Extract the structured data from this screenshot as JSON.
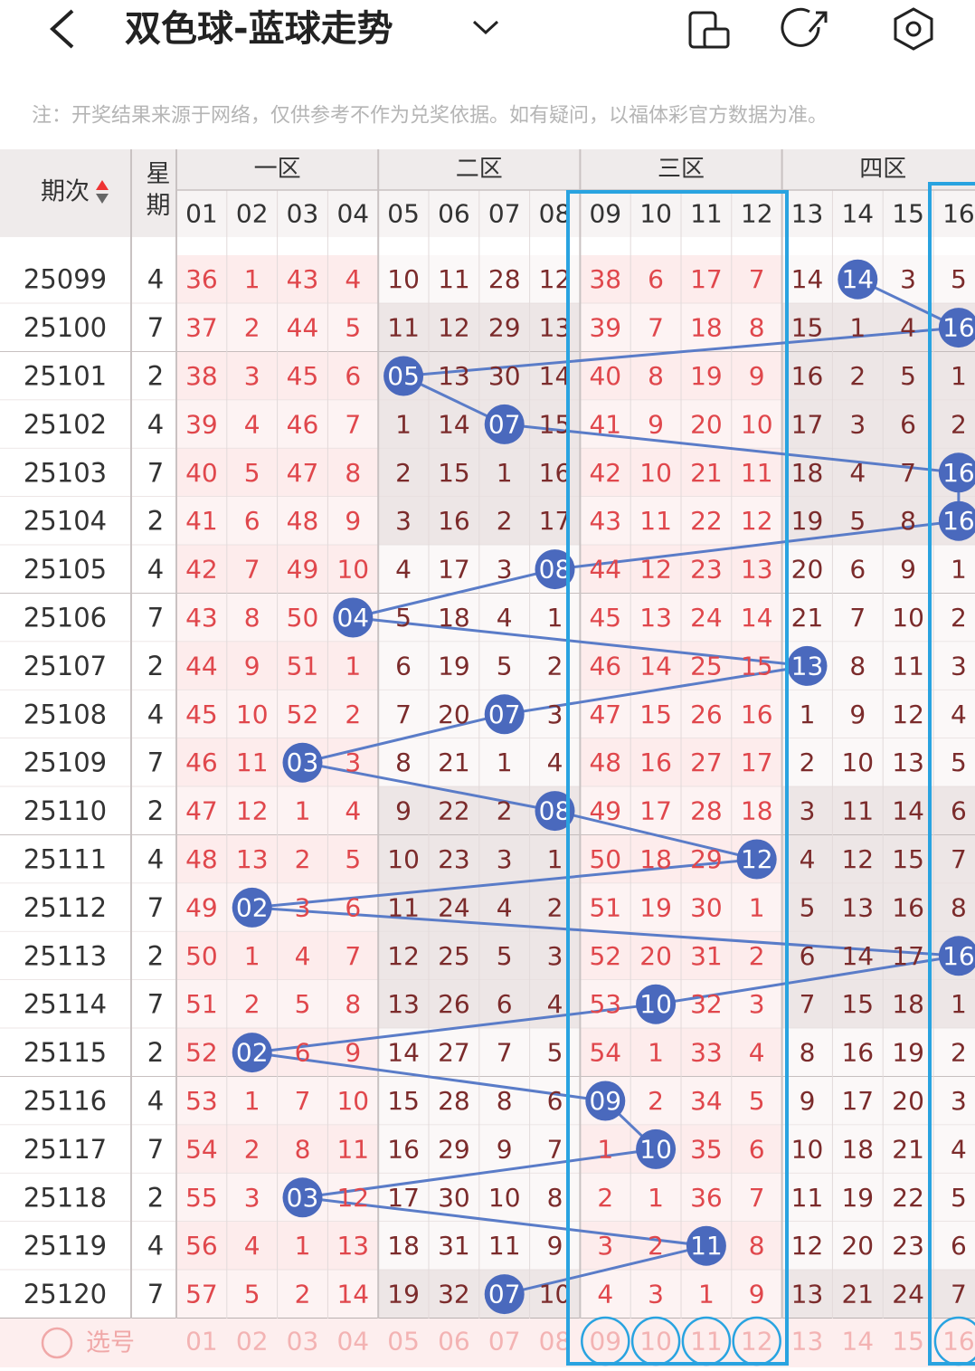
{
  "header": {
    "title": "双色球-蓝球走势"
  },
  "note": "注：开奖结果来源于网络，仅供参考不作为兑奖依据。如有疑问，以福体彩官方数据为准。",
  "table": {
    "issue_header": "期次",
    "weekday_header": "星期",
    "zones": [
      "一区",
      "二区",
      "三区",
      "四区"
    ],
    "columns": [
      "01",
      "02",
      "03",
      "04",
      "05",
      "06",
      "07",
      "08",
      "09",
      "10",
      "11",
      "12",
      "13",
      "14",
      "15",
      "16"
    ],
    "rows": [
      {
        "issue": "25099",
        "weekday": 4,
        "cells": [
          36,
          1,
          43,
          4,
          10,
          11,
          28,
          12,
          38,
          6,
          17,
          7,
          14,
          {
            "ball": "14"
          },
          3,
          5
        ]
      },
      {
        "issue": "25100",
        "weekday": 7,
        "cells": [
          37,
          2,
          44,
          5,
          11,
          12,
          29,
          13,
          39,
          7,
          18,
          8,
          15,
          1,
          4,
          {
            "ball": "16"
          }
        ]
      },
      {
        "issue": "25101",
        "weekday": 2,
        "cells": [
          38,
          3,
          45,
          6,
          {
            "ball": "05"
          },
          13,
          30,
          14,
          40,
          8,
          19,
          9,
          16,
          2,
          5,
          1
        ]
      },
      {
        "issue": "25102",
        "weekday": 4,
        "cells": [
          39,
          4,
          46,
          7,
          1,
          14,
          {
            "ball": "07"
          },
          15,
          41,
          9,
          20,
          10,
          17,
          3,
          6,
          2
        ]
      },
      {
        "issue": "25103",
        "weekday": 7,
        "cells": [
          40,
          5,
          47,
          8,
          2,
          15,
          1,
          16,
          42,
          10,
          21,
          11,
          18,
          4,
          7,
          {
            "ball": "16"
          }
        ]
      },
      {
        "issue": "25104",
        "weekday": 2,
        "cells": [
          41,
          6,
          48,
          9,
          3,
          16,
          2,
          17,
          43,
          11,
          22,
          12,
          19,
          5,
          8,
          {
            "ball": "16"
          }
        ]
      },
      {
        "issue": "25105",
        "weekday": 4,
        "cells": [
          42,
          7,
          49,
          10,
          4,
          17,
          3,
          {
            "ball": "08"
          },
          44,
          12,
          23,
          13,
          20,
          6,
          9,
          1
        ]
      },
      {
        "issue": "25106",
        "weekday": 7,
        "cells": [
          43,
          8,
          50,
          {
            "ball": "04"
          },
          5,
          18,
          4,
          1,
          45,
          13,
          24,
          14,
          21,
          7,
          10,
          2
        ]
      },
      {
        "issue": "25107",
        "weekday": 2,
        "cells": [
          44,
          9,
          51,
          1,
          6,
          19,
          5,
          2,
          46,
          14,
          25,
          15,
          {
            "ball": "13"
          },
          8,
          11,
          3
        ]
      },
      {
        "issue": "25108",
        "weekday": 4,
        "cells": [
          45,
          10,
          52,
          2,
          7,
          20,
          {
            "ball": "07"
          },
          3,
          47,
          15,
          26,
          16,
          1,
          9,
          12,
          4
        ]
      },
      {
        "issue": "25109",
        "weekday": 7,
        "cells": [
          46,
          11,
          {
            "ball": "03"
          },
          3,
          8,
          21,
          1,
          4,
          48,
          16,
          27,
          17,
          2,
          10,
          13,
          5
        ]
      },
      {
        "issue": "25110",
        "weekday": 2,
        "cells": [
          47,
          12,
          1,
          4,
          9,
          22,
          2,
          {
            "ball": "08"
          },
          49,
          17,
          28,
          18,
          3,
          11,
          14,
          6
        ]
      },
      {
        "issue": "25111",
        "weekday": 4,
        "cells": [
          48,
          13,
          2,
          5,
          10,
          23,
          3,
          1,
          50,
          18,
          29,
          {
            "ball": "12"
          },
          4,
          12,
          15,
          7
        ]
      },
      {
        "issue": "25112",
        "weekday": 7,
        "cells": [
          49,
          {
            "ball": "02"
          },
          3,
          6,
          11,
          24,
          4,
          2,
          51,
          19,
          30,
          1,
          5,
          13,
          16,
          8
        ]
      },
      {
        "issue": "25113",
        "weekday": 2,
        "cells": [
          50,
          1,
          4,
          7,
          12,
          25,
          5,
          3,
          52,
          20,
          31,
          2,
          6,
          14,
          17,
          {
            "ball": "16"
          }
        ]
      },
      {
        "issue": "25114",
        "weekday": 7,
        "cells": [
          51,
          2,
          5,
          8,
          13,
          26,
          6,
          4,
          53,
          {
            "ball": "10"
          },
          32,
          3,
          7,
          15,
          18,
          1
        ]
      },
      {
        "issue": "25115",
        "weekday": 2,
        "cells": [
          52,
          {
            "ball": "02"
          },
          6,
          9,
          14,
          27,
          7,
          5,
          54,
          1,
          33,
          4,
          8,
          16,
          19,
          2
        ]
      },
      {
        "issue": "25116",
        "weekday": 4,
        "cells": [
          53,
          1,
          7,
          10,
          15,
          28,
          8,
          6,
          {
            "ball": "09"
          },
          2,
          34,
          5,
          9,
          17,
          20,
          3
        ]
      },
      {
        "issue": "25117",
        "weekday": 7,
        "cells": [
          54,
          2,
          8,
          11,
          16,
          29,
          9,
          7,
          1,
          {
            "ball": "10"
          },
          35,
          6,
          10,
          18,
          21,
          4
        ]
      },
      {
        "issue": "25118",
        "weekday": 2,
        "cells": [
          55,
          3,
          {
            "ball": "03"
          },
          12,
          17,
          30,
          10,
          8,
          2,
          1,
          36,
          7,
          11,
          19,
          22,
          5
        ]
      },
      {
        "issue": "25119",
        "weekday": 4,
        "cells": [
          56,
          4,
          1,
          13,
          18,
          31,
          11,
          9,
          3,
          2,
          {
            "ball": "11"
          },
          8,
          12,
          20,
          23,
          6
        ]
      },
      {
        "issue": "25120",
        "weekday": 7,
        "cells": [
          57,
          5,
          2,
          14,
          19,
          32,
          {
            "ball": "07"
          },
          10,
          4,
          3,
          1,
          9,
          13,
          21,
          24,
          7
        ]
      }
    ]
  },
  "footer": {
    "select": "选号"
  }
}
